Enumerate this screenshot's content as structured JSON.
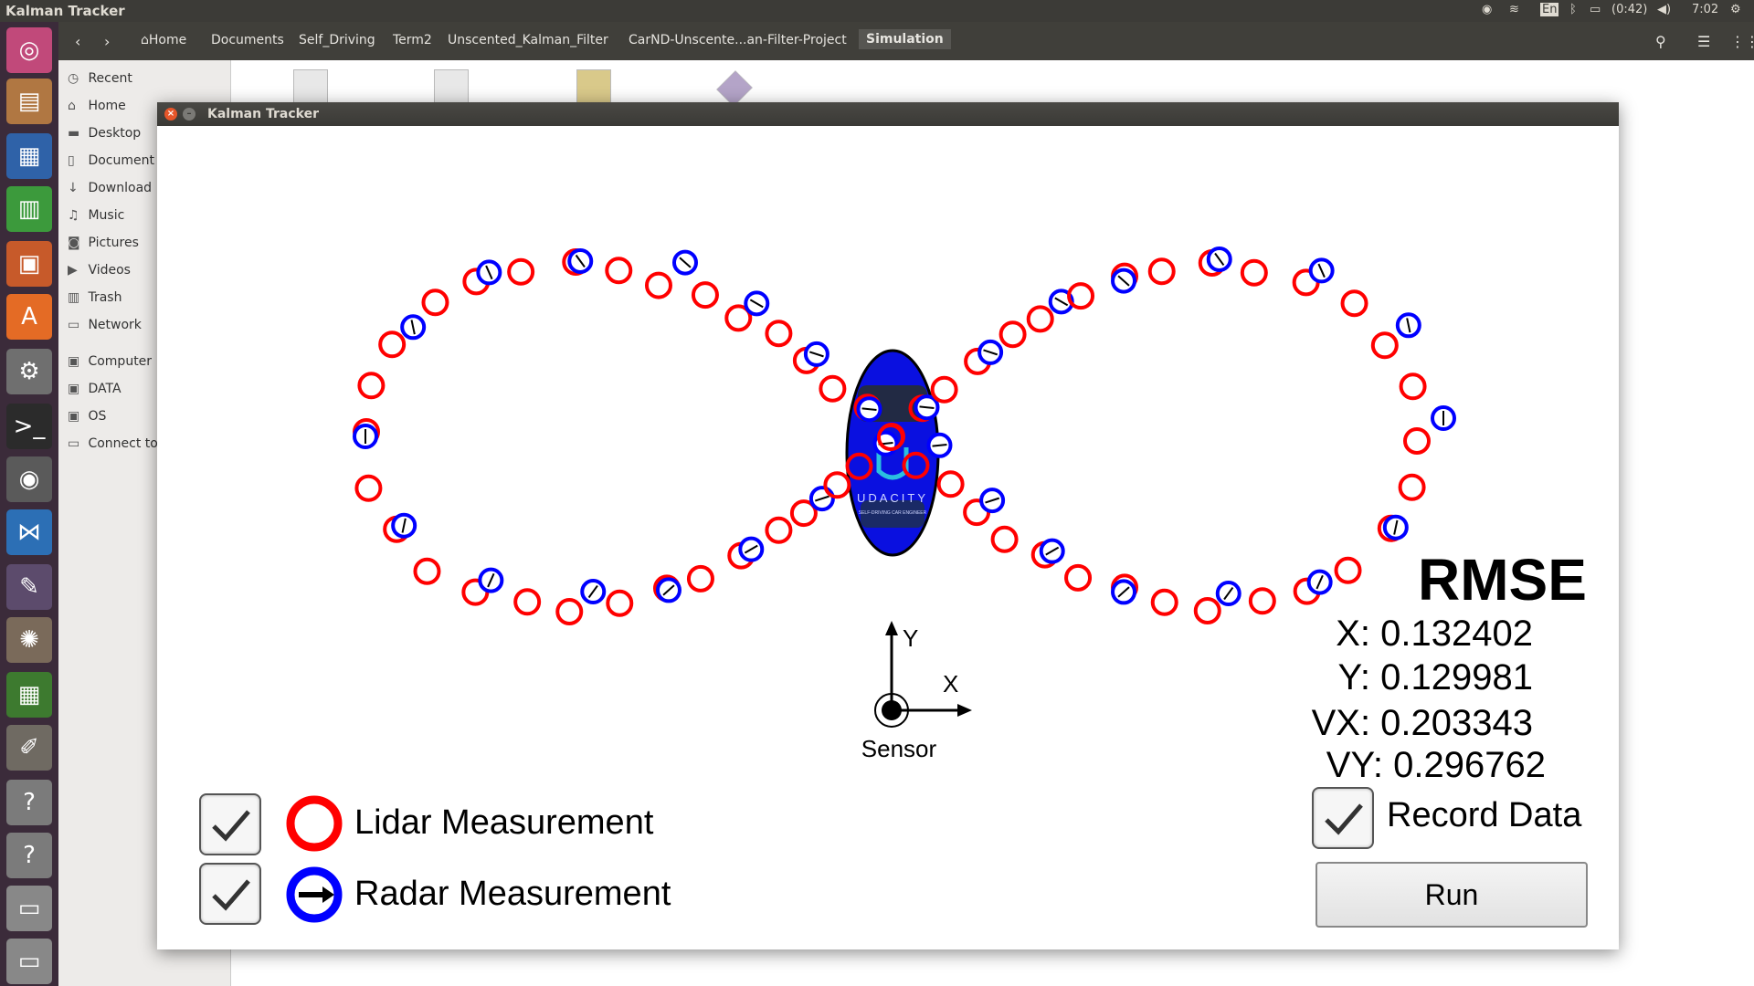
{
  "topbar": {
    "title": "Kalman Tracker",
    "battery": "(0:42)",
    "time": "7:02",
    "keyboard": "En"
  },
  "filemanager": {
    "breadcrumbs": [
      "Home",
      "Documents",
      "Self_Driving",
      "Term2",
      "Unscented_Kalman_Filter",
      "CarND-Unscente...an-Filter-Project",
      "Simulation"
    ],
    "sidebar": [
      "Recent",
      "Home",
      "Desktop",
      "Document",
      "Download",
      "Music",
      "Pictures",
      "Videos",
      "Trash",
      "Network",
      "Computer",
      "DATA",
      "OS",
      "Connect to"
    ]
  },
  "window": {
    "title": "Kalman Tracker"
  },
  "sensor": {
    "label": "Sensor",
    "x_axis": "X",
    "y_axis": "Y"
  },
  "car": {
    "brand": "UDACITY",
    "tagline": "SELF-DRIVING CAR ENGINEER"
  },
  "legend": {
    "lidar": "Lidar Measurement",
    "radar": "Radar Measurement",
    "lidar_color": "#ff0000",
    "radar_color": "#0000ff"
  },
  "rmse": {
    "title": "RMSE",
    "x": "X: 0.132402",
    "y": "Y: 0.129981",
    "vx": "VX: 0.203343",
    "vy": "VY: 0.296762"
  },
  "controls": {
    "record": "Record Data",
    "run": "Run"
  }
}
